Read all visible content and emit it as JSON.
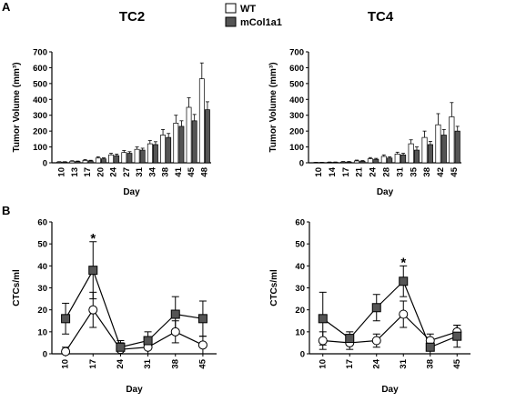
{
  "panel_labels": [
    "A",
    "B"
  ],
  "legend": {
    "entries": [
      {
        "label": "WT",
        "color": "#ffffff"
      },
      {
        "label": "mCol1a1",
        "color": "#555555"
      }
    ]
  },
  "chart_data": [
    {
      "type": "bar",
      "title": "TC2",
      "xlabel": "Day",
      "ylabel": "Tumor Volume (mm³)",
      "ylim": [
        0,
        700
      ],
      "yticks": [
        0,
        100,
        200,
        300,
        400,
        500,
        600,
        700
      ],
      "categories": [
        "10",
        "13",
        "17",
        "20",
        "24",
        "27",
        "31",
        "34",
        "38",
        "41",
        "45",
        "48"
      ],
      "series": [
        {
          "name": "WT",
          "color": "#ffffff",
          "values": [
            5,
            10,
            15,
            30,
            50,
            65,
            85,
            120,
            175,
            250,
            350,
            530
          ],
          "errors": [
            2,
            3,
            5,
            8,
            10,
            12,
            15,
            20,
            35,
            50,
            60,
            100
          ]
        },
        {
          "name": "mCol1a1",
          "color": "#555555",
          "values": [
            5,
            8,
            12,
            25,
            45,
            60,
            80,
            115,
            160,
            230,
            265,
            335
          ],
          "errors": [
            2,
            3,
            4,
            6,
            10,
            10,
            12,
            18,
            25,
            35,
            40,
            50
          ]
        }
      ]
    },
    {
      "type": "bar",
      "title": "TC4",
      "xlabel": "Day",
      "ylabel": "Tumor Volume (mm³)",
      "ylim": [
        0,
        700
      ],
      "yticks": [
        0,
        100,
        200,
        300,
        400,
        500,
        600,
        700
      ],
      "categories": [
        "10",
        "14",
        "17",
        "21",
        "24",
        "28",
        "31",
        "35",
        "38",
        "42",
        "45"
      ],
      "series": [
        {
          "name": "WT",
          "color": "#ffffff",
          "values": [
            2,
            3,
            5,
            12,
            25,
            40,
            55,
            120,
            160,
            240,
            290
          ],
          "errors": [
            1,
            2,
            3,
            5,
            8,
            10,
            12,
            25,
            40,
            70,
            90
          ]
        },
        {
          "name": "mCol1a1",
          "color": "#555555",
          "values": [
            2,
            3,
            5,
            10,
            22,
            30,
            50,
            80,
            115,
            175,
            200
          ],
          "errors": [
            1,
            2,
            3,
            4,
            6,
            8,
            10,
            20,
            20,
            35,
            30
          ]
        }
      ]
    },
    {
      "type": "line",
      "title": "",
      "xlabel": "Day",
      "ylabel": "CTCs/ml",
      "ylim": [
        0,
        60
      ],
      "yticks": [
        0,
        10,
        20,
        30,
        40,
        50,
        60
      ],
      "x": [
        "10",
        "17",
        "24",
        "31",
        "38",
        "45"
      ],
      "series": [
        {
          "name": "WT",
          "marker": "circle",
          "values": [
            1,
            20,
            2,
            3,
            10,
            4
          ],
          "errors": [
            2,
            8,
            3,
            3,
            5,
            4
          ]
        },
        {
          "name": "mCol1a1",
          "marker": "square",
          "values": [
            16,
            38,
            3,
            6,
            18,
            16
          ],
          "errors": [
            7,
            13,
            3,
            4,
            8,
            8
          ]
        }
      ],
      "annotations": [
        {
          "x": "17",
          "y": 53,
          "text": "*"
        }
      ]
    },
    {
      "type": "line",
      "title": "",
      "xlabel": "Day",
      "ylabel": "CTCs/ml",
      "ylim": [
        0,
        60
      ],
      "yticks": [
        0,
        10,
        20,
        30,
        40,
        50,
        60
      ],
      "x": [
        "10",
        "17",
        "24",
        "31",
        "38",
        "45"
      ],
      "series": [
        {
          "name": "WT",
          "marker": "circle",
          "values": [
            6,
            5,
            6,
            18,
            6,
            10
          ],
          "errors": [
            4,
            3,
            3,
            6,
            3,
            3
          ]
        },
        {
          "name": "mCol1a1",
          "marker": "square",
          "values": [
            16,
            7,
            21,
            33,
            3,
            8
          ],
          "errors": [
            12,
            3,
            6,
            7,
            4,
            5
          ]
        }
      ],
      "annotations": [
        {
          "x": "31",
          "y": 42,
          "text": "*"
        }
      ]
    }
  ]
}
